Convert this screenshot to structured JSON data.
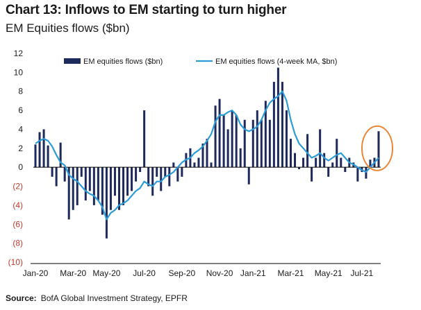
{
  "title": "Chart 13: Inflows to EM starting to turn higher",
  "subtitle": "EM Equities flows ($bn)",
  "source_label": "Source:",
  "source_text": "BofA Global Investment Strategy, EPFR",
  "colors": {
    "bar": "#1f2a5c",
    "line": "#2d9bd6",
    "negative_tick": "#c0392b",
    "highlight": "#e8873a",
    "axis": "#000000"
  },
  "chart_data": {
    "type": "bar",
    "title": "Chart 13: Inflows to EM starting to turn higher",
    "subtitle": "EM Equities flows ($bn)",
    "ylim": [
      -10,
      12
    ],
    "yticks": [
      12,
      10,
      8,
      6,
      4,
      2,
      0,
      -2,
      -4,
      -6,
      -8,
      -10
    ],
    "ytick_labels": [
      "12",
      "10",
      "8",
      "6",
      "4",
      "2",
      "0",
      "(2)",
      "(4)",
      "(6)",
      "(8)",
      "(10)"
    ],
    "x_labels": [
      "Jan-20",
      "Mar-20",
      "May-20",
      "Jul-20",
      "Sep-20",
      "Nov-20",
      "Jan-21",
      "Mar-21",
      "May-21",
      "Jul-21"
    ],
    "x_label_week_index": [
      0,
      9,
      17,
      26,
      35,
      44,
      52,
      61,
      70,
      78
    ],
    "legend_position": "top",
    "grid": false,
    "series": [
      {
        "name": "EM equities flows ($bn)",
        "type": "bar",
        "values": [
          2.4,
          3.7,
          4.0,
          2.3,
          -1.0,
          -2.0,
          2.6,
          -1.5,
          -5.5,
          -4.5,
          -4.0,
          -1.0,
          -3.5,
          -2.5,
          -4.0,
          -3.5,
          -5.0,
          -7.5,
          -4.5,
          -3.0,
          -4.5,
          -4.0,
          -3.0,
          -2.5,
          -1.5,
          -0.5,
          6.0,
          -2.0,
          -3.0,
          -1.0,
          -2.5,
          -1.0,
          -2.0,
          0.5,
          -1.5,
          -1.0,
          1.5,
          2.0,
          0.5,
          1.0,
          2.5,
          3.0,
          0.5,
          6.5,
          7.2,
          5.5,
          4.0,
          6.0,
          5.5,
          2.0,
          5.0,
          -1.8,
          5.0,
          6.0,
          5.0,
          7.0,
          5.0,
          9.0,
          10.5,
          9.0,
          6.0,
          3.0,
          1.5,
          -0.2,
          1.0,
          3.5,
          -1.5,
          1.0,
          4.0,
          1.5,
          -1.0,
          0.5,
          3.0,
          1.0,
          -0.5,
          1.0,
          0.5,
          -1.5,
          -0.5,
          -1.2,
          0.8,
          1.0,
          3.8
        ]
      },
      {
        "name": "EM equities flows (4-week MA, $bn)",
        "type": "line",
        "values": [
          2.5,
          2.8,
          3.0,
          2.8,
          2.2,
          1.3,
          0.5,
          0.2,
          -0.8,
          -1.2,
          -1.5,
          -2.0,
          -2.5,
          -2.8,
          -3.0,
          -3.5,
          -4.2,
          -5.5,
          -4.8,
          -4.5,
          -4.0,
          -3.8,
          -3.5,
          -3.0,
          -2.5,
          -2.2,
          -1.5,
          -1.8,
          -2.0,
          -1.5,
          -1.5,
          -1.0,
          -0.8,
          -0.5,
          0.0,
          0.5,
          0.8,
          1.0,
          1.5,
          1.8,
          2.2,
          2.8,
          3.5,
          4.8,
          5.5,
          5.5,
          5.8,
          6.0,
          5.5,
          4.5,
          4.0,
          3.8,
          4.0,
          4.3,
          5.0,
          6.0,
          6.8,
          7.2,
          7.5,
          8.0,
          7.0,
          5.0,
          3.5,
          2.5,
          2.0,
          1.5,
          1.0,
          1.2,
          1.5,
          1.0,
          0.7,
          1.0,
          1.3,
          1.5,
          1.0,
          0.5,
          0.3,
          0.0,
          -0.3,
          -0.5,
          0.0,
          0.5,
          1.0
        ]
      }
    ]
  }
}
